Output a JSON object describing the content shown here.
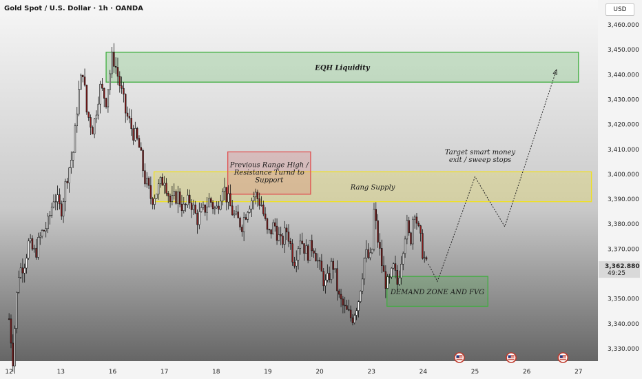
{
  "header": {
    "title": "Gold Spot / U.S. Dollar · 1h · OANDA",
    "currency": "USD"
  },
  "colors": {
    "up": "#ffffff",
    "down": "#8b1a1a",
    "wick": "#111111",
    "green_zone": "#3fae3f",
    "yellow_zone": "#f0e020",
    "red_zone": "#e05050",
    "axis_bg": "#f4f4f4"
  },
  "chart_data": {
    "type": "candlestick",
    "interval": "1h",
    "ylim": [
      3325,
      3465
    ],
    "y_ticks": [
      3330,
      3340,
      3350,
      3360,
      3370,
      3380,
      3390,
      3400,
      3410,
      3420,
      3430,
      3440,
      3450,
      3460
    ],
    "y_tick_labels": [
      "3,330.000",
      "3,340.000",
      "3,350.000",
      "3,360.000",
      "3,370.000",
      "3,380.000",
      "3,390.000",
      "3,400.000",
      "3,410.000",
      "3,420.000",
      "3,430.000",
      "3,440.000",
      "3,450.000",
      "3,460.000"
    ],
    "x_ticks": [
      {
        "label": "12",
        "x": 0
      },
      {
        "label": "13",
        "x": 4
      },
      {
        "label": "16",
        "x": 8
      },
      {
        "label": "17",
        "x": 12
      },
      {
        "label": "18",
        "x": 16
      },
      {
        "label": "19",
        "x": 20
      },
      {
        "label": "20",
        "x": 24
      },
      {
        "label": "23",
        "x": 28
      },
      {
        "label": "24",
        "x": 32
      },
      {
        "label": "25",
        "x": 36
      },
      {
        "label": "26",
        "x": 40
      },
      {
        "label": "27",
        "x": 44
      }
    ],
    "xlim": [
      -0.7,
      45.5
    ],
    "price_path": [
      [
        0,
        3342
      ],
      [
        0.3,
        3326
      ],
      [
        0.7,
        3360
      ],
      [
        1.2,
        3365
      ],
      [
        1.5,
        3372
      ],
      [
        2.0,
        3368
      ],
      [
        2.5,
        3376
      ],
      [
        3.0,
        3380
      ],
      [
        3.5,
        3392
      ],
      [
        4.0,
        3385
      ],
      [
        4.5,
        3400
      ],
      [
        5.0,
        3410
      ],
      [
        5.3,
        3430
      ],
      [
        5.7,
        3442
      ],
      [
        6.0,
        3425
      ],
      [
        6.5,
        3418
      ],
      [
        7.0,
        3435
      ],
      [
        7.5,
        3430
      ],
      [
        8.0,
        3448
      ],
      [
        8.3,
        3442
      ],
      [
        8.6,
        3435
      ],
      [
        9.0,
        3425
      ],
      [
        9.5,
        3418
      ],
      [
        10.0,
        3412
      ],
      [
        10.5,
        3398
      ],
      [
        11.0,
        3390
      ],
      [
        11.5,
        3394
      ],
      [
        12.0,
        3399
      ],
      [
        12.5,
        3388
      ],
      [
        13.0,
        3392
      ],
      [
        13.5,
        3386
      ],
      [
        14.0,
        3390
      ],
      [
        14.5,
        3382
      ],
      [
        15.0,
        3385
      ],
      [
        15.5,
        3390
      ],
      [
        16.0,
        3385
      ],
      [
        16.5,
        3396
      ],
      [
        17.0,
        3388
      ],
      [
        17.5,
        3382
      ],
      [
        18.0,
        3380
      ],
      [
        18.5,
        3388
      ],
      [
        19.0,
        3392
      ],
      [
        19.5,
        3388
      ],
      [
        20.0,
        3375
      ],
      [
        20.5,
        3380
      ],
      [
        21.0,
        3372
      ],
      [
        21.5,
        3378
      ],
      [
        22.0,
        3365
      ],
      [
        22.5,
        3375
      ],
      [
        23.0,
        3368
      ],
      [
        23.5,
        3372
      ],
      [
        24.0,
        3362
      ],
      [
        24.5,
        3355
      ],
      [
        25.0,
        3365
      ],
      [
        25.5,
        3350
      ],
      [
        26.0,
        3345
      ],
      [
        26.5,
        3342
      ],
      [
        27.0,
        3350
      ],
      [
        27.5,
        3368
      ],
      [
        28.0,
        3365
      ],
      [
        28.2,
        3385
      ],
      [
        28.6,
        3370
      ],
      [
        29.0,
        3358
      ],
      [
        29.3,
        3355
      ],
      [
        29.7,
        3362
      ],
      [
        30.0,
        3356
      ],
      [
        30.4,
        3370
      ],
      [
        30.7,
        3380
      ],
      [
        31.0,
        3372
      ],
      [
        31.3,
        3388
      ],
      [
        31.6,
        3378
      ],
      [
        32.0,
        3368
      ],
      [
        32.3,
        3362
      ]
    ],
    "last_price": "3,362.880",
    "countdown": "49:25",
    "zones": [
      {
        "name": "EQH Liquidity",
        "x0": 7.5,
        "x1": 44.0,
        "y0": 3437,
        "y1": 3449,
        "color": "#3fae3f"
      },
      {
        "name": "Rang Supply",
        "x0": 11.2,
        "x1": 45.0,
        "y0": 3389,
        "y1": 3401,
        "color": "#f0e020"
      },
      {
        "name": "DEMAND ZONE AND FVG",
        "x0": 29.2,
        "x1": 37.0,
        "y0": 3347,
        "y1": 3359,
        "color": "#3fae3f"
      }
    ],
    "callout": {
      "lines": [
        "Previous Range High /",
        "Resistance Turnd to",
        "Support"
      ],
      "x0": 16.9,
      "x1": 23.3,
      "y0": 3392,
      "y1": 3409,
      "color": "#e05050"
    },
    "projection": {
      "points": [
        [
          32.4,
          3364
        ],
        [
          33.1,
          3357
        ],
        [
          36.0,
          3399
        ],
        [
          38.3,
          3379
        ],
        [
          42.3,
          3442
        ]
      ],
      "label_lines": [
        "Target smart money",
        "exit / sweep stops"
      ],
      "label_at": [
        36.4,
        3408
      ]
    },
    "event_markers": [
      34.8,
      38.8,
      42.8
    ]
  }
}
